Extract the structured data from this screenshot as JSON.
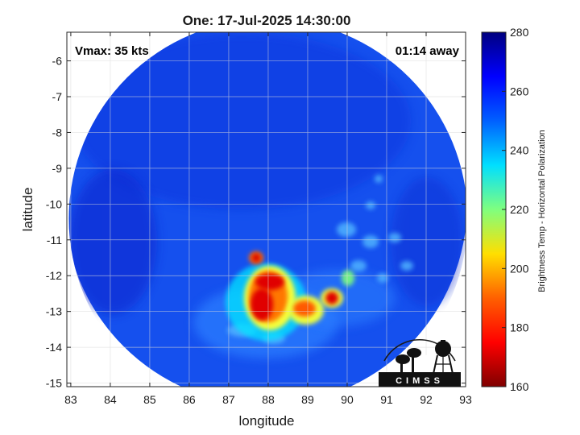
{
  "title": "One: 17-Jul-2025 14:30:00",
  "annotations": {
    "vmax": "Vmax: 35 kts",
    "time_away": "01:14 away"
  },
  "axes": {
    "xlabel": "longitude",
    "ylabel": "latitude",
    "xlim": [
      82.9,
      93.0
    ],
    "ylim": [
      -15.1,
      -5.2
    ],
    "xticks": [
      "83",
      "84",
      "85",
      "86",
      "87",
      "88",
      "89",
      "90",
      "91",
      "92",
      "93"
    ],
    "yticks": [
      "-6",
      "-7",
      "-8",
      "-9",
      "-10",
      "-11",
      "-12",
      "-13",
      "-14",
      "-15"
    ],
    "grid": true
  },
  "colorbar": {
    "label": "Brightness Temp - Horizontal Polarization",
    "ticks": [
      "280",
      "260",
      "240",
      "220",
      "200",
      "180",
      "160"
    ],
    "range": [
      160,
      280
    ],
    "colormap": "jet"
  },
  "logo": {
    "text": "CIMSS"
  },
  "swath": {
    "center_lon": 88.0,
    "center_lat": -10.4,
    "radius_deg": 5.05,
    "background_tb": 258,
    "cold_regions": [
      {
        "lon": 88.1,
        "lat": -12.3,
        "tb": 185
      },
      {
        "lon": 87.7,
        "lat": -11.55,
        "tb": 195
      },
      {
        "lon": 88.0,
        "lat": -12.9,
        "tb": 188
      },
      {
        "lon": 89.0,
        "lat": -12.95,
        "tb": 190
      },
      {
        "lon": 89.6,
        "lat": -12.65,
        "tb": 195
      },
      {
        "lon": 90.0,
        "lat": -12.0,
        "tb": 215
      },
      {
        "lon": 90.8,
        "lat": -11.2,
        "tb": 230
      },
      {
        "lon": 91.3,
        "lat": -9.6,
        "tb": 235
      }
    ]
  },
  "colors": {
    "deep_blue": "#0a2ad0",
    "background_blue": "#1550ee",
    "frame": "#262626",
    "grid": "#d9d9d9"
  }
}
